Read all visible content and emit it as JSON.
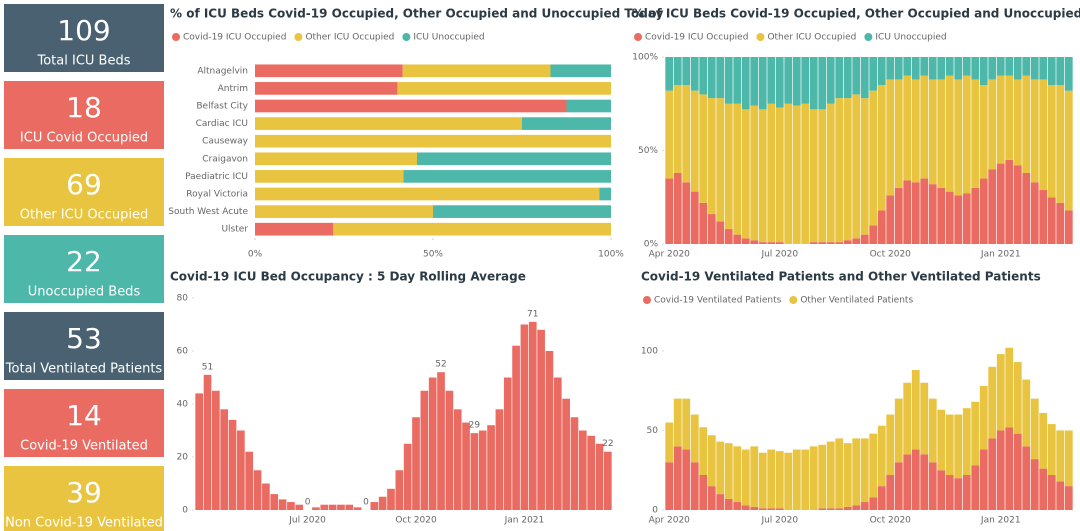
{
  "kpis": [
    {
      "value": 109,
      "label": "Total ICU Beds",
      "color": "#4a6172"
    },
    {
      "value": 18,
      "label": "ICU Covid Occupied",
      "color": "#ea6b61"
    },
    {
      "value": 69,
      "label": "Other ICU Occupied",
      "color": "#e8c440"
    },
    {
      "value": 22,
      "label": "Unoccupied Beds",
      "color": "#4db8a9"
    },
    {
      "value": 53,
      "label": "Total Ventilated Patients",
      "color": "#4a6172"
    },
    {
      "value": 14,
      "label": "Covid-19 Ventilated",
      "color": "#ea6b61"
    },
    {
      "value": 39,
      "label": "Non Covid-19 Ventilated",
      "color": "#e8c440"
    }
  ],
  "chart_data": [
    {
      "type": "bar",
      "orientation": "horizontal",
      "stacked": true,
      "title": "% of ICU Beds Covid-19 Occupied, Other Occupied and Unoccupied Today",
      "legend": "top-left",
      "categories": [
        "Altnagelvin",
        "Antrim",
        "Belfast City",
        "Cardiac ICU",
        "Causeway",
        "Craigavon",
        "Paediatric ICU",
        "Royal Victoria",
        "South West Acute",
        "Ulster"
      ],
      "series": [
        {
          "name": "Covid-19 ICU Occupied",
          "color": "#ea6b61",
          "values": [
            41.5,
            40,
            87.5,
            0,
            0,
            0,
            0,
            0,
            0,
            22
          ]
        },
        {
          "name": "Other ICU Occupied",
          "color": "#e8c440",
          "values": [
            41.5,
            60,
            0,
            75,
            100,
            45.5,
            41.7,
            96.7,
            50,
            78
          ]
        },
        {
          "name": "ICU Unoccupied",
          "color": "#4db8a9",
          "values": [
            17,
            0,
            12.5,
            25,
            0,
            54.5,
            58.3,
            3.3,
            50,
            0
          ]
        }
      ],
      "xlim": [
        0,
        100
      ],
      "xticks": [
        {
          "value": 0,
          "label": "0%"
        },
        {
          "value": 50,
          "label": "50%"
        },
        {
          "value": 100,
          "label": "100%"
        }
      ]
    },
    {
      "type": "bar",
      "orientation": "vertical",
      "stacked": true,
      "title": "% of ICU Beds Covid-19 Occupied, Other Occupied and Unoccupied",
      "legend": "top-left",
      "categories": [
        "Apr 2020",
        null,
        null,
        null,
        null,
        null,
        null,
        null,
        null,
        null,
        null,
        null,
        null,
        "Jul 2020",
        null,
        null,
        null,
        null,
        null,
        null,
        null,
        null,
        null,
        null,
        null,
        null,
        "Oct 2020",
        null,
        null,
        null,
        null,
        null,
        null,
        null,
        null,
        null,
        null,
        null,
        null,
        "Jan 2021",
        null,
        null,
        null,
        null,
        null,
        null,
        null,
        null
      ],
      "series": [
        {
          "name": "Covid-19 ICU Occupied",
          "color": "#ea6b61",
          "values": [
            35,
            38,
            33,
            28,
            22,
            16,
            12,
            8,
            5,
            3,
            2,
            1,
            1,
            1,
            0,
            0,
            0,
            1,
            1,
            1,
            1,
            2,
            3,
            5,
            10,
            18,
            26,
            30,
            34,
            33,
            35,
            32,
            30,
            28,
            26,
            27,
            30,
            35,
            40,
            43,
            45,
            42,
            38,
            33,
            29,
            25,
            22,
            18
          ]
        },
        {
          "name": "Other ICU Occupied",
          "color": "#e8c440",
          "values": [
            47,
            47,
            52,
            54,
            58,
            62,
            66,
            67,
            70,
            69,
            72,
            71,
            74,
            72,
            75,
            74,
            75,
            71,
            71,
            74,
            77,
            76,
            77,
            73,
            72,
            67,
            62,
            58,
            56,
            55,
            55,
            56,
            58,
            62,
            62,
            63,
            58,
            50,
            48,
            47,
            45,
            46,
            52,
            55,
            59,
            60,
            63,
            64
          ]
        },
        {
          "name": "ICU Unoccupied",
          "color": "#4db8a9",
          "values": [
            18,
            15,
            15,
            18,
            20,
            22,
            22,
            25,
            25,
            28,
            26,
            28,
            25,
            27,
            25,
            26,
            25,
            28,
            28,
            25,
            22,
            22,
            20,
            22,
            18,
            15,
            12,
            12,
            10,
            12,
            10,
            12,
            12,
            10,
            12,
            10,
            12,
            15,
            12,
            10,
            10,
            12,
            10,
            12,
            12,
            15,
            15,
            18
          ]
        }
      ],
      "ylim": [
        0,
        100
      ],
      "yticks": [
        {
          "value": 0,
          "label": "0%"
        },
        {
          "value": 50,
          "label": "50%"
        },
        {
          "value": 100,
          "label": "100%"
        }
      ]
    },
    {
      "type": "bar",
      "orientation": "vertical",
      "stacked": false,
      "title": "Covid-19 ICU Bed Occupancy : 5 Day Rolling Average",
      "color": "#ea6b61",
      "categories": [
        null,
        null,
        null,
        null,
        null,
        null,
        null,
        null,
        null,
        null,
        null,
        null,
        null,
        "Jul 2020",
        null,
        null,
        null,
        null,
        null,
        null,
        null,
        null,
        null,
        null,
        null,
        null,
        "Oct 2020",
        null,
        null,
        null,
        null,
        null,
        null,
        null,
        null,
        null,
        null,
        null,
        null,
        "Jan 2021",
        null,
        null,
        null,
        null,
        null,
        null,
        null,
        null,
        null,
        null
      ],
      "values": [
        44,
        51,
        45,
        38,
        34,
        30,
        22,
        15,
        10,
        6,
        4,
        3,
        2,
        0,
        1,
        2,
        2,
        2,
        2,
        1,
        0,
        3,
        5,
        8,
        15,
        25,
        35,
        45,
        50,
        52,
        45,
        38,
        33,
        29,
        30,
        32,
        38,
        50,
        62,
        70,
        71,
        68,
        60,
        50,
        42,
        35,
        30,
        28,
        25,
        22
      ],
      "value_labels": [
        null,
        "51",
        null,
        null,
        null,
        null,
        null,
        null,
        null,
        null,
        null,
        null,
        null,
        "0",
        null,
        null,
        null,
        null,
        null,
        null,
        "0",
        null,
        null,
        null,
        null,
        null,
        null,
        null,
        null,
        "52",
        null,
        null,
        null,
        "29",
        null,
        null,
        null,
        null,
        null,
        null,
        "71",
        null,
        null,
        null,
        null,
        null,
        null,
        null,
        null,
        "22"
      ],
      "ylim": [
        0,
        80
      ],
      "yticks": [
        0,
        20,
        40,
        60,
        80
      ]
    },
    {
      "type": "bar",
      "orientation": "vertical",
      "stacked": true,
      "title": "Covid-19 Ventilated Patients and Other Ventilated Patients",
      "legend": "top-left",
      "categories": [
        "Apr 2020",
        null,
        null,
        null,
        null,
        null,
        null,
        null,
        null,
        null,
        null,
        null,
        null,
        "Jul 2020",
        null,
        null,
        null,
        null,
        null,
        null,
        null,
        null,
        null,
        null,
        null,
        null,
        "Oct 2020",
        null,
        null,
        null,
        null,
        null,
        null,
        null,
        null,
        null,
        null,
        null,
        null,
        "Jan 2021",
        null,
        null,
        null,
        null,
        null,
        null,
        null,
        null
      ],
      "series": [
        {
          "name": "Covid-19 Ventilated Patients",
          "color": "#ea6b61",
          "values": [
            30,
            40,
            38,
            30,
            22,
            15,
            10,
            7,
            5,
            3,
            2,
            1,
            1,
            1,
            0,
            0,
            0,
            0,
            1,
            1,
            1,
            2,
            3,
            5,
            8,
            15,
            22,
            30,
            35,
            38,
            35,
            30,
            25,
            22,
            20,
            22,
            28,
            38,
            45,
            50,
            52,
            48,
            40,
            32,
            26,
            22,
            18,
            15
          ]
        },
        {
          "name": "Other Ventilated Patients",
          "color": "#e8c440",
          "values": [
            25,
            30,
            32,
            30,
            30,
            32,
            33,
            35,
            35,
            35,
            38,
            35,
            37,
            36,
            36,
            38,
            38,
            40,
            40,
            42,
            44,
            40,
            42,
            40,
            40,
            38,
            38,
            40,
            45,
            50,
            45,
            40,
            38,
            38,
            40,
            42,
            40,
            40,
            45,
            48,
            50,
            45,
            42,
            38,
            35,
            32,
            32,
            35
          ]
        }
      ],
      "ylim": [
        0,
        110
      ],
      "yticks": [
        0,
        50,
        100
      ]
    }
  ]
}
